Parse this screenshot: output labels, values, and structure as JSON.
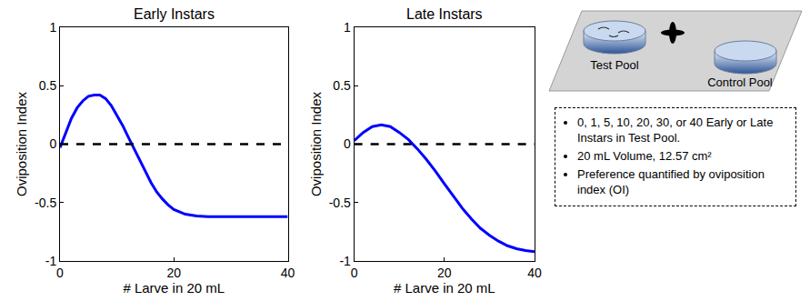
{
  "chart_data": [
    {
      "type": "line",
      "title": "Early Instars",
      "x_label": "# Larve in 20 mL",
      "y_label": "Oviposition Index",
      "xlim": [
        0,
        40
      ],
      "ylim": [
        -1,
        1
      ],
      "xticks": [
        0,
        20,
        40
      ],
      "yticks": [
        -1,
        -0.5,
        0,
        0.5,
        1
      ],
      "grid": false,
      "series": [
        {
          "color": "#0000ff",
          "line_style": "solid",
          "x": [
            0,
            1,
            2,
            3,
            4,
            5,
            6,
            7,
            8,
            9,
            10,
            11,
            12,
            13,
            14,
            15,
            16,
            17,
            18,
            19,
            20,
            22,
            24,
            26,
            30,
            35,
            40
          ],
          "values": [
            -0.03,
            0.1,
            0.22,
            0.31,
            0.37,
            0.41,
            0.42,
            0.42,
            0.39,
            0.33,
            0.25,
            0.16,
            0.06,
            -0.04,
            -0.14,
            -0.24,
            -0.33,
            -0.41,
            -0.47,
            -0.52,
            -0.56,
            -0.6,
            -0.615,
            -0.62,
            -0.62,
            -0.62,
            -0.62
          ]
        },
        {
          "color": "#000000",
          "line_style": "dashed",
          "x": [
            0,
            40
          ],
          "values": [
            0,
            0
          ]
        }
      ]
    },
    {
      "type": "line",
      "title": "Late Instars",
      "x_label": "# Larve in 20 mL",
      "y_label": "Oviposition Index",
      "xlim": [
        0,
        40
      ],
      "ylim": [
        -1,
        1
      ],
      "xticks": [
        0,
        20,
        40
      ],
      "yticks": [
        -1,
        -0.5,
        0,
        0.5,
        1
      ],
      "grid": false,
      "series": [
        {
          "color": "#0000ff",
          "line_style": "solid",
          "x": [
            0,
            2,
            4,
            6,
            8,
            10,
            12,
            14,
            16,
            18,
            20,
            22,
            24,
            26,
            28,
            30,
            32,
            34,
            36,
            38,
            40
          ],
          "values": [
            0.03,
            0.1,
            0.15,
            0.165,
            0.15,
            0.1,
            0.04,
            -0.04,
            -0.13,
            -0.23,
            -0.34,
            -0.45,
            -0.55,
            -0.64,
            -0.72,
            -0.78,
            -0.83,
            -0.87,
            -0.895,
            -0.91,
            -0.92
          ]
        },
        {
          "color": "#000000",
          "line_style": "dashed",
          "x": [
            0,
            40
          ],
          "values": [
            0,
            0
          ]
        }
      ]
    }
  ],
  "diagram": {
    "test_pool_label": "Test Pool",
    "control_pool_label": "Control Pool",
    "notes": [
      "0, 1, 5, 10, 20, 30, or 40 Early or Late Instars in Test Pool.",
      "20 mL Volume, 12.57 cm²",
      "Preference quantified by oviposition index (OI)"
    ]
  }
}
